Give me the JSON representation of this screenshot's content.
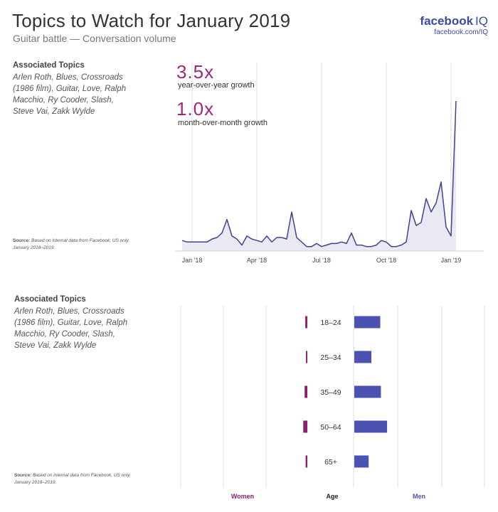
{
  "header": {
    "title": "Topics to Watch for January 2019",
    "subtitle": "Guitar battle — Conversation volume",
    "brand": "facebook",
    "brand_suffix": "IQ",
    "brand_url": "facebook.com/IQ"
  },
  "colors": {
    "line": "#3d4390",
    "area_fill": "#e9e9f4",
    "women": "#8d1f6f",
    "men": "#4b52b1",
    "stat": "#9c2a7c",
    "grid": "#dedede"
  },
  "top_section": {
    "topics_heading": "Associated Topics",
    "topics_text": "Arlen Roth, Blues, Crossroads (1986 film), Guitar, Love, Ralph Macchio, Ry Cooder, Slash, Steve Vai, Zakk Wylde",
    "source_label": "Source:",
    "source_text": " Based on internal data from Facebook, US only.",
    "source_period": "January 2018–2019.",
    "stat1_value": "3.5x",
    "stat1_label": "year-over-year growth",
    "stat2_value": "1.0x",
    "stat2_label": "month-over-month growth"
  },
  "bottom_section": {
    "topics_heading": "Associated Topics",
    "topics_text": "Arlen Roth, Blues, Crossroads (1986 film), Guitar, Love, Ralph Macchio, Ry Cooder, Slash, Steve Vai, Zakk Wylde",
    "source_label": "Source:",
    "source_text": " Based on internal data from Facebook, US only.",
    "source_period": "January 2018–2019."
  },
  "chart_data": [
    {
      "type": "area",
      "x_tick_labels": [
        "Jan '18",
        "Apr '18",
        "Jul '18",
        "Oct '18",
        "Jan '19"
      ],
      "x_ticks_at_week": [
        2,
        15,
        28,
        41,
        54
      ],
      "ylim": [
        0,
        100
      ],
      "grid": "vertical",
      "series": [
        {
          "x_week": [
            0,
            1,
            2,
            3,
            4,
            5,
            6,
            7,
            8,
            9,
            10,
            11,
            12,
            13,
            14,
            15,
            16,
            17,
            18,
            19,
            20,
            21,
            22,
            23,
            24,
            25,
            26,
            27,
            28,
            29,
            30,
            31,
            32,
            33,
            34,
            35,
            36,
            37,
            38,
            39,
            40,
            41,
            42,
            43,
            44,
            45,
            46,
            47,
            48,
            49,
            50,
            51,
            52,
            53,
            54,
            55
          ],
          "values": [
            7,
            6,
            6,
            6,
            6,
            6,
            8,
            9,
            12,
            21,
            10,
            8,
            4,
            10,
            8,
            7,
            6,
            10,
            6,
            9,
            9,
            8,
            26,
            9,
            6,
            3,
            3,
            5,
            3,
            4,
            5,
            5,
            6,
            5,
            12,
            4,
            4,
            3,
            3,
            4,
            7,
            6,
            3,
            3,
            4,
            6,
            27,
            17,
            19,
            35,
            26,
            32,
            46,
            16,
            10,
            100
          ]
        }
      ]
    },
    {
      "type": "bar",
      "orientation": "horizontal",
      "categories": [
        "18–24",
        "25–34",
        "35–49",
        "50–64",
        "65+"
      ],
      "axis_title": "Age",
      "series": [
        {
          "name": "Women",
          "values": [
            0.6,
            0.4,
            0.8,
            1.2,
            0.5
          ]
        },
        {
          "name": "Men",
          "values": [
            7.6,
            5.0,
            7.8,
            9.6,
            4.2
          ]
        }
      ]
    }
  ]
}
